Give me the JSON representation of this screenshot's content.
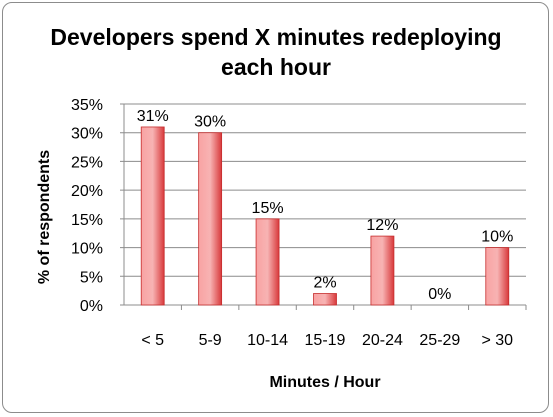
{
  "chart_data": {
    "type": "bar",
    "title_lines": [
      "Developers spend X minutes redeploying",
      "each hour"
    ],
    "xlabel": "Minutes / Hour",
    "ylabel": "% of respondents",
    "categories": [
      "< 5",
      "5-9",
      "10-14",
      "15-19",
      "20-24",
      "25-29",
      "> 30"
    ],
    "values": [
      31,
      30,
      15,
      2,
      12,
      0,
      10
    ],
    "value_labels": [
      "31%",
      "30%",
      "15%",
      "2%",
      "12%",
      "0%",
      "10%"
    ],
    "ylim": [
      0,
      35
    ],
    "yticks": [
      0,
      5,
      10,
      15,
      20,
      25,
      30,
      35
    ],
    "ytick_labels": [
      "0%",
      "5%",
      "10%",
      "15%",
      "20%",
      "25%",
      "30%",
      "35%"
    ],
    "grid": true,
    "legend": "none",
    "colors": {
      "bar_light": "#f9a3a3",
      "bar_dark": "#d8393b",
      "bar_edge": "#c62d2d",
      "grid": "#8c8c8c"
    }
  }
}
